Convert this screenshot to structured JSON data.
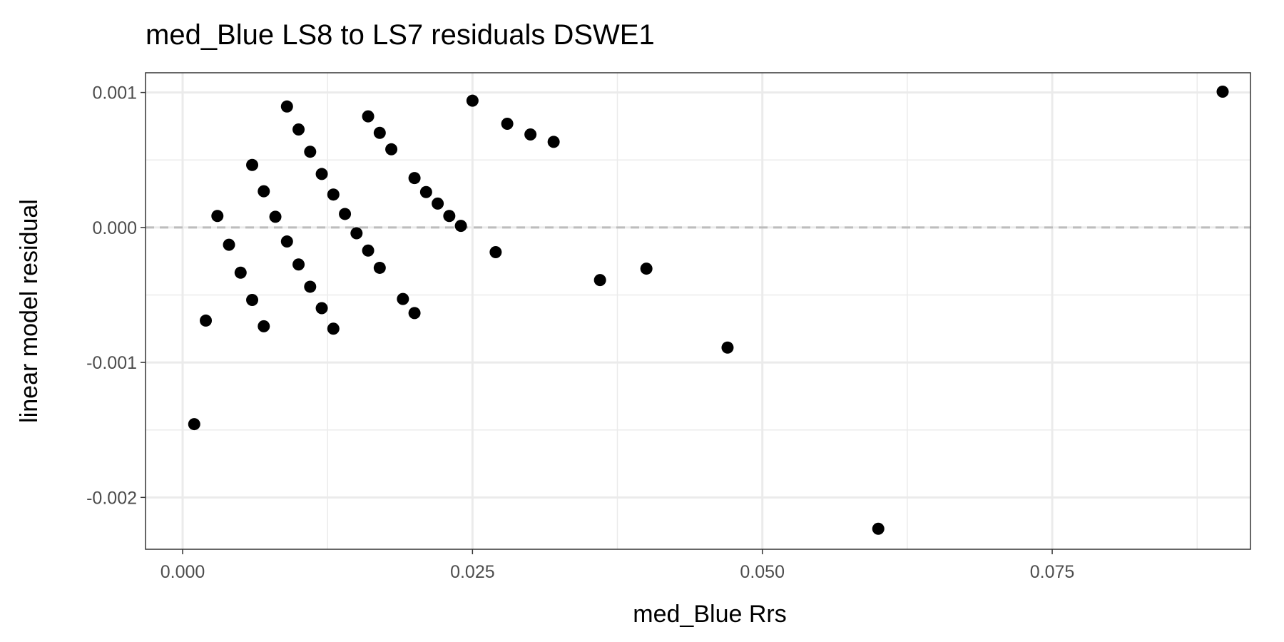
{
  "chart_data": {
    "type": "scatter",
    "title": "med_Blue LS8 to LS7 residuals DSWE1",
    "xlabel": "med_Blue  Rrs",
    "ylabel": "linear model residual",
    "xlim": [
      -0.0032,
      0.0921
    ],
    "ylim": [
      -0.002384,
      0.001146
    ],
    "xticks": [
      0.0,
      0.025,
      0.05,
      0.075
    ],
    "xtick_labels": [
      "0.000",
      "0.025",
      "0.050",
      "0.075"
    ],
    "yticks": [
      0.001,
      0.0,
      -0.001,
      -0.002
    ],
    "ytick_labels": [
      "0.001",
      "0.000",
      "-0.001",
      "-0.002"
    ],
    "grid": true,
    "reference_line": {
      "y": 0,
      "style": "dashed",
      "color": "#bdbdbd"
    },
    "point_color": "#000000",
    "points": [
      [
        0.001,
        -0.001457
      ],
      [
        0.002,
        -0.00069
      ],
      [
        0.003,
        8.5e-05
      ],
      [
        0.004,
        -0.000128
      ],
      [
        0.005,
        -0.000335
      ],
      [
        0.006,
        0.000463
      ],
      [
        0.006,
        -0.000537
      ],
      [
        0.007,
        0.000268
      ],
      [
        0.007,
        -0.000732
      ],
      [
        0.008,
        7.9e-05
      ],
      [
        0.009,
        0.000896
      ],
      [
        0.009,
        -0.000104
      ],
      [
        0.01,
        0.000726
      ],
      [
        0.01,
        -0.000274
      ],
      [
        0.011,
        0.000561
      ],
      [
        0.011,
        -0.000439
      ],
      [
        0.012,
        0.000396
      ],
      [
        0.012,
        -0.000598
      ],
      [
        0.013,
        0.000244
      ],
      [
        0.013,
        -0.00075
      ],
      [
        0.014,
        0.0001
      ],
      [
        0.015,
        -4.3e-05
      ],
      [
        0.016,
        0.000823
      ],
      [
        0.016,
        -0.000171
      ],
      [
        0.017,
        0.000701
      ],
      [
        0.017,
        -0.000299
      ],
      [
        0.018,
        0.000579
      ],
      [
        0.019,
        -0.00053
      ],
      [
        0.02,
        0.000366
      ],
      [
        0.02,
        -0.000634
      ],
      [
        0.021,
        0.000262
      ],
      [
        0.022,
        0.000177
      ],
      [
        0.023,
        8.5e-05
      ],
      [
        0.024,
        1.2e-05
      ],
      [
        0.025,
        0.000939
      ],
      [
        0.027,
        -0.000183
      ],
      [
        0.028,
        0.000768
      ],
      [
        0.03,
        0.000689
      ],
      [
        0.032,
        0.000634
      ],
      [
        0.036,
        -0.00039
      ],
      [
        0.04,
        -0.000305
      ],
      [
        0.047,
        -0.00089
      ],
      [
        0.06,
        -0.002232
      ],
      [
        0.0897,
        0.001006
      ]
    ]
  }
}
